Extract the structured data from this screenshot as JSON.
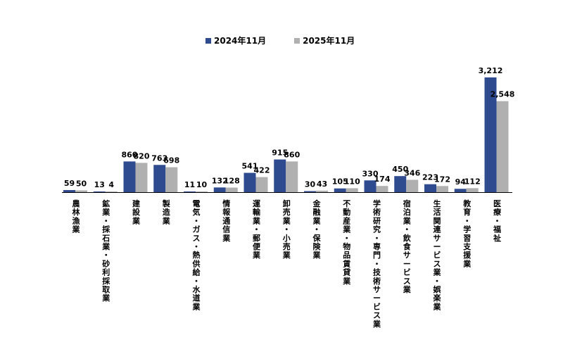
{
  "chart_data": {
    "type": "bar",
    "categories": [
      "農林漁業",
      "鉱業・採石業・砂利採取業",
      "建設業",
      "製造業",
      "電気・ガス・熱供給・水道業",
      "情報通信業",
      "運輸業・郵便業",
      "卸売業・小売業",
      "金融業・保険業",
      "不動産業・物品賃貸業",
      "学術研究・専門・技術サービス業",
      "宿泊業・飲食サービス業",
      "生活関連サービス業・娯楽業",
      "教育・学習支援業",
      "医療・福祉"
    ],
    "series": [
      {
        "name": "2024年11月",
        "values": [
          59,
          13,
          860,
          763,
          11,
          132,
          541,
          915,
          30,
          105,
          330,
          450,
          223,
          94,
          3212
        ],
        "labels": [
          "59",
          "13",
          "860",
          "763",
          "11",
          "132",
          "541",
          "915",
          "30",
          "105",
          "330",
          "450",
          "223",
          "94",
          "3,212"
        ]
      },
      {
        "name": "2025年11月",
        "values": [
          50,
          4,
          820,
          698,
          10,
          128,
          422,
          860,
          43,
          110,
          174,
          346,
          172,
          112,
          2548
        ],
        "labels": [
          "50",
          "4",
          "820",
          "698",
          "10",
          "128",
          "422",
          "860",
          "43",
          "110",
          "174",
          "346",
          "172",
          "112",
          "2,548"
        ]
      }
    ],
    "title": "",
    "xlabel": "",
    "ylabel": "",
    "ylim": [
      0,
      3212
    ],
    "grid": false,
    "legend_position": "top",
    "colors": [
      "#2F4B8F",
      "#B0B0B0"
    ]
  }
}
